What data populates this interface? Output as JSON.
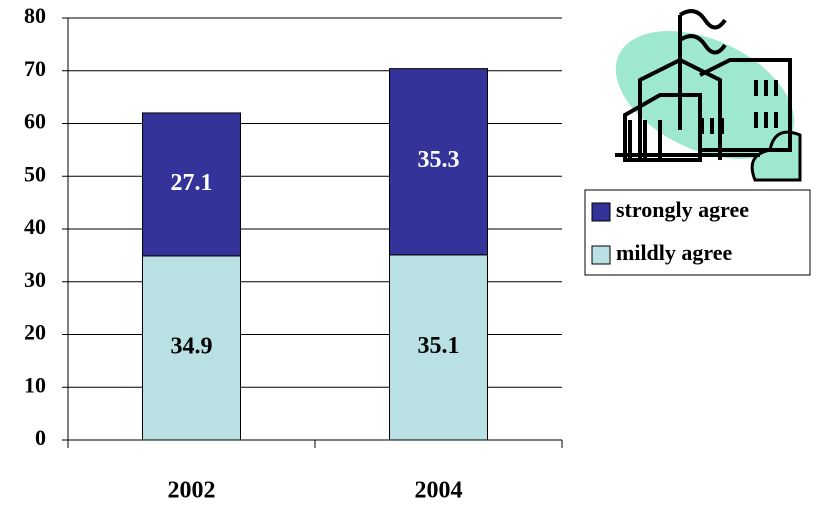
{
  "chart_data": {
    "type": "stacked_bar",
    "categories": [
      "2002",
      "2004"
    ],
    "series": [
      {
        "name": "mildly agree",
        "color": "#b9e0e3",
        "label_color": "#000000",
        "values": [
          34.9,
          35.1
        ]
      },
      {
        "name": "strongly agree",
        "color": "#333399",
        "label_color": "#ffffff",
        "values": [
          27.1,
          35.3
        ]
      }
    ],
    "ylim": [
      0,
      80
    ],
    "yticks": [
      0,
      10,
      20,
      30,
      40,
      50,
      60,
      70,
      80
    ],
    "grid": true
  }
}
